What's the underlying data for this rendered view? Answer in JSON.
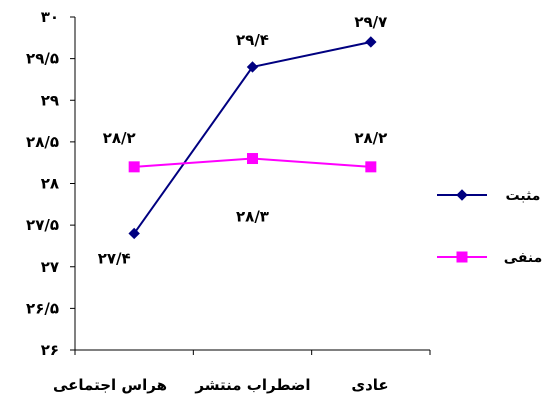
{
  "chart_data": {
    "type": "line",
    "categories": [
      "هراس اجتماعی",
      "اضطراب منتشر",
      "عادی"
    ],
    "ylim": [
      26,
      30
    ],
    "yticks": [
      26,
      26.5,
      27,
      27.5,
      28,
      28.5,
      29,
      29.5,
      30
    ],
    "ytick_labels": [
      "۲۶",
      "۲۶/۵",
      "۲۷",
      "۲۷/۵",
      "۲۸",
      "۲۸/۵",
      "۲۹",
      "۲۹/۵",
      "۳۰"
    ],
    "grid": false,
    "legend_position": "right",
    "series": [
      {
        "name": "مثبت",
        "values": [
          27.4,
          29.4,
          29.7
        ],
        "labels": [
          "۲۷/۴",
          "۲۹/۴",
          "۲۹/۷"
        ],
        "color": "#000080",
        "marker": "diamond"
      },
      {
        "name": "منفی",
        "values": [
          28.2,
          28.3,
          28.2
        ],
        "labels": [
          "۲۸/۲",
          "۲۸/۳",
          "۲۸/۲"
        ],
        "color": "#FF00FF",
        "marker": "square"
      }
    ]
  }
}
